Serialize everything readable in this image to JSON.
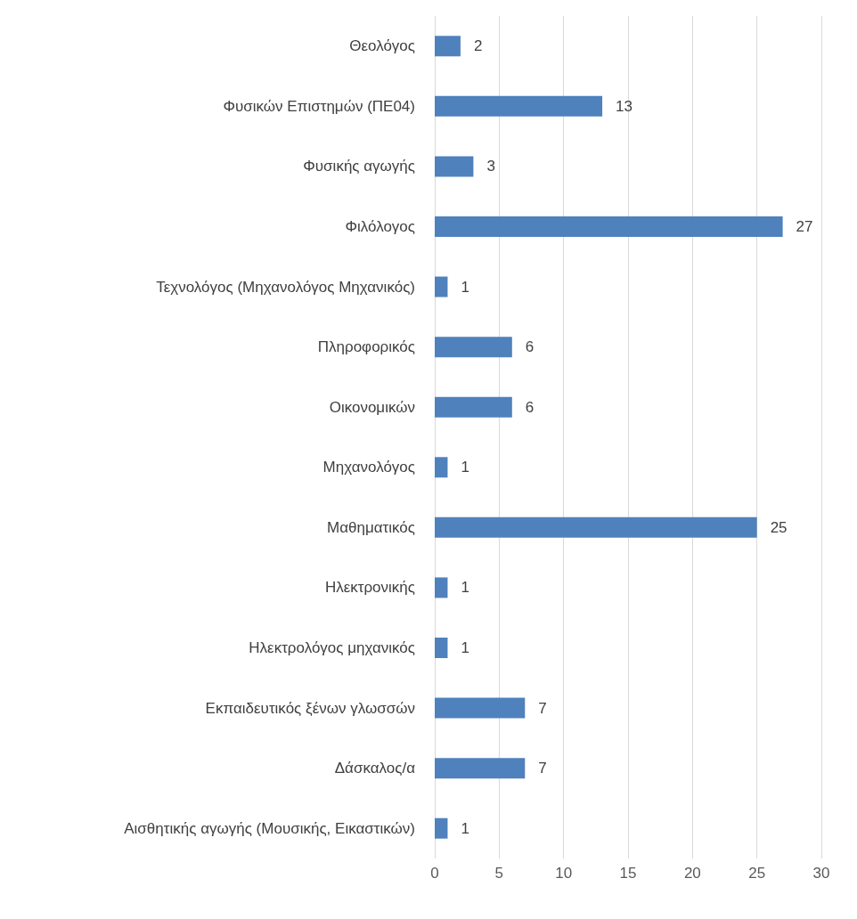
{
  "chart_data": {
    "type": "bar",
    "orientation": "horizontal",
    "categories": [
      "Θεολόγος",
      "Φυσικών Επιστημών (ΠΕ04)",
      "Φυσικής αγωγής",
      "Φιλόλογος",
      "Τεχνολόγος (Μηχανολόγος Μηχανικός)",
      "Πληροφορικός",
      "Οικονομικών",
      "Μηχανολόγος",
      "Μαθηματικός",
      "Ηλεκτρονικής",
      "Ηλεκτρολόγος μηχανικός",
      "Εκπαιδευτικός ξένων γλωσσών",
      "Δάσκαλος/α",
      "Αισθητικής αγωγής (Μουσικής, Εικαστικών)"
    ],
    "values": [
      2,
      13,
      3,
      27,
      1,
      6,
      6,
      1,
      25,
      1,
      1,
      7,
      7,
      1
    ],
    "color": "#4f81bd",
    "xlim": [
      0,
      30
    ],
    "xticks": [
      0,
      5,
      10,
      15,
      20,
      25,
      30
    ],
    "grid": "x",
    "data_labels": true
  }
}
